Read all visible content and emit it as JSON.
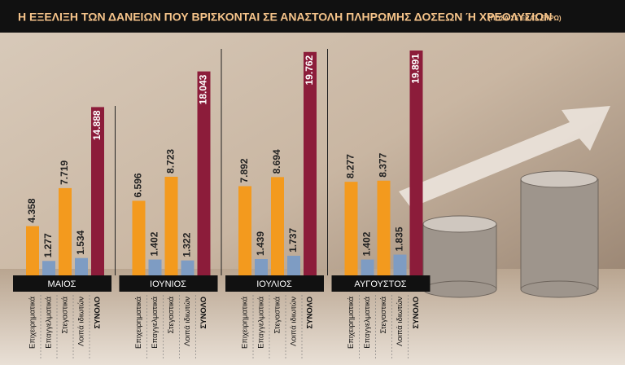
{
  "chart_data": {
    "type": "bar",
    "title": "Η ΕΞΕΛΙΞΗ ΤΩΝ ΔΑΝΕΙΩΝ ΠΟΥ ΒΡΙΣΚΟΝΤΑΙ ΣΕ ΑΝΑΣΤΟΛΗ ΠΛΗΡΩΜΗΣ ΔΟΣΕΩΝ Ή ΧΡΕΟΛΥΣΙΩΝ",
    "subtitle": "(ΠΟΣΑ ΣΕ ΕΚΑΤ. ΕΥΡΩ)",
    "categories": [
      "ΜΑΙΟΣ",
      "ΙΟΥΝΙΟΣ",
      "ΙΟΥΛΙΟΣ",
      "ΑΥΓΟΥΣΤΟΣ"
    ],
    "series": [
      {
        "name": "Επιχειρηματικά",
        "color": "#f39a1e",
        "values": [
          4358,
          6596,
          7892,
          8277
        ],
        "value_labels": [
          "4.358",
          "6.596",
          "7.892",
          "8.277"
        ]
      },
      {
        "name": "Επαγγελματικά",
        "color": "#7e9cc3",
        "values": [
          1277,
          1402,
          1439,
          1402
        ],
        "value_labels": [
          "1.277",
          "1.402",
          "1.439",
          "1.402"
        ]
      },
      {
        "name": "Στεγαστικά",
        "color": "#f39a1e",
        "values": [
          7719,
          8723,
          8694,
          8377
        ],
        "value_labels": [
          "7.719",
          "8.723",
          "8.694",
          "8.377"
        ]
      },
      {
        "name": "Λοιπά ιδιωτών",
        "color": "#7e9cc3",
        "values": [
          1534,
          1322,
          1737,
          1835
        ],
        "value_labels": [
          "1.534",
          "1.322",
          "1.737",
          "1.835"
        ]
      },
      {
        "name": "ΣΥΝΟΛΟ",
        "color": "#8c1c3a",
        "values": [
          14888,
          18043,
          19762,
          19891
        ],
        "value_labels": [
          "14.888",
          "18.043",
          "19.762",
          "19.891"
        ]
      }
    ]
  }
}
